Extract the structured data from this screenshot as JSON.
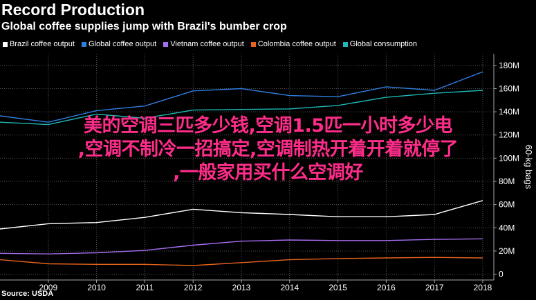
{
  "header": {
    "title": "Record Production",
    "subtitle": "Global coffee supplies jump with Brazil's bumber crop"
  },
  "source": "Source: USDA",
  "overlay_text": {
    "line1": "美的空调三匹多少钱,空调1.5匹一小时多少电",
    "line2": ",空调不制冷一招搞定,空调制热开着开着就停了",
    "line3": ",一般家用买什么空调好"
  },
  "colors": {
    "background": "#000000",
    "brazil": "#ffffff",
    "global_output": "#2f7fe0",
    "vietnam": "#a66ef0",
    "colombia": "#e8641c",
    "consumption": "#1fb8b8",
    "overlay": "#ff2d8a"
  },
  "chart_data": {
    "type": "line",
    "title": "Record Production",
    "subtitle": "Global coffee supplies jump with Brazil's bumber crop",
    "xlabel": "",
    "ylabel": "60-kg bags",
    "x": [
      2008,
      2009,
      2010,
      2011,
      2012,
      2013,
      2014,
      2015,
      2016,
      2017,
      2018
    ],
    "x_tick_labels": [
      "2009",
      "2010",
      "2011",
      "2012",
      "2013",
      "2014",
      "2015",
      "2016",
      "2017",
      "2018"
    ],
    "y_tick_labels": [
      "0",
      "20M",
      "40M",
      "60M",
      "80M",
      "100M",
      "120M",
      "140M",
      "160M",
      "180M"
    ],
    "ylim": [
      -5,
      190
    ],
    "y_axis_side": "right",
    "grid": true,
    "legend_position": "top",
    "series": [
      {
        "name": "Brazil coffee output",
        "color_key": "brazil",
        "values": [
          39,
          43.5,
          44.5,
          49,
          56,
          53,
          51.5,
          49.5,
          49.5,
          51.5,
          63.5
        ]
      },
      {
        "name": "Global coffee output",
        "color_key": "global_output",
        "values": [
          136.5,
          131,
          141,
          145,
          158,
          160,
          154,
          153,
          161.5,
          158.5,
          174.5
        ]
      },
      {
        "name": "Vietnam coffee output",
        "color_key": "vietnam",
        "values": [
          18,
          17.5,
          18.5,
          20.5,
          25,
          28.5,
          29.5,
          29,
          29,
          30,
          30.5
        ]
      },
      {
        "name": "Colombia coffee output",
        "color_key": "colombia",
        "values": [
          12.5,
          9,
          8.5,
          8.5,
          7.5,
          10,
          12.5,
          13.5,
          14,
          14.5,
          14
        ]
      },
      {
        "name": "Global consumption",
        "color_key": "consumption",
        "values": [
          131,
          129,
          138,
          134.5,
          141.5,
          142,
          142.5,
          145.5,
          152.5,
          156,
          158.5
        ]
      }
    ]
  }
}
